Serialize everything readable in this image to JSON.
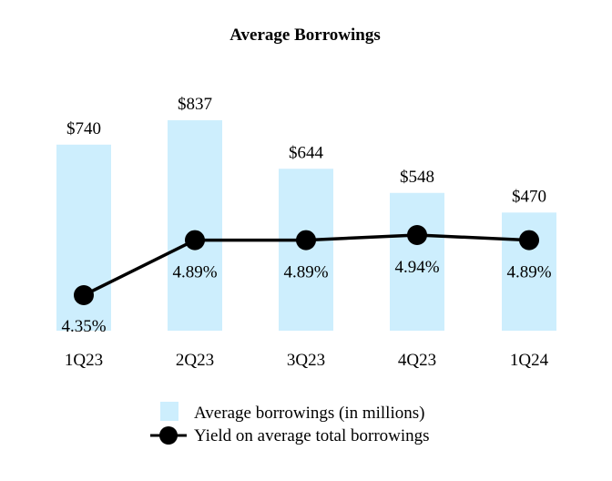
{
  "chart_data": {
    "type": "bar",
    "title": "Average Borrowings",
    "categories": [
      "1Q23",
      "2Q23",
      "3Q23",
      "4Q23",
      "1Q24"
    ],
    "series": [
      {
        "name": "Average borrowings (in millions)",
        "kind": "bar",
        "color": "#cdeefd",
        "values": [
          740,
          837,
          644,
          548,
          470
        ],
        "labels": [
          "$740",
          "$837",
          "$644",
          "$548",
          "$470"
        ]
      },
      {
        "name": "Yield on average total borrowings",
        "kind": "line",
        "color": "#000000",
        "values": [
          4.35,
          4.89,
          4.89,
          4.94,
          4.89
        ],
        "labels": [
          "4.35%",
          "4.89%",
          "4.89%",
          "4.94%",
          "4.89%"
        ]
      }
    ],
    "bar_ylim": [
      0,
      880
    ],
    "line_ylim": [
      4.0,
      5.7
    ],
    "grid": false,
    "legend_position": "bottom-center"
  }
}
